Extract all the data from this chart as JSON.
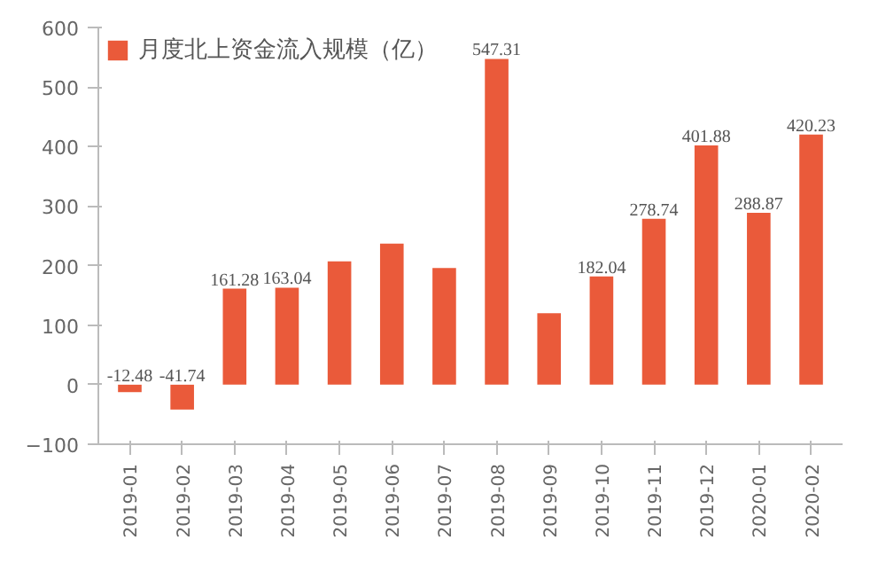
{
  "chart_data": {
    "type": "bar",
    "categories": [
      "2019-01",
      "2019-02",
      "2019-03",
      "2019-04",
      "2019-05",
      "2019-06",
      "2019-07",
      "2019-08",
      "2019-09",
      "2019-10",
      "2019-11",
      "2019-12",
      "2020-01",
      "2020-02"
    ],
    "series": [
      {
        "name": "月度北上资金流入规模（亿）",
        "color": "#ea5a3a",
        "values": [
          -12.48,
          -41.74,
          161.28,
          163.04,
          207,
          237,
          196,
          547.31,
          120,
          182.04,
          278.74,
          401.88,
          288.87,
          420.23
        ],
        "value_labels": [
          "-12.48",
          "-41.74",
          "161.28",
          "163.04",
          null,
          null,
          null,
          "547.31",
          null,
          "182.04",
          "278.74",
          "401.88",
          "288.87",
          "420.23"
        ]
      }
    ],
    "ylim": [
      -100,
      600
    ],
    "yticks": [
      -100,
      0,
      100,
      200,
      300,
      400,
      500,
      600
    ],
    "grid": false,
    "legend": "top"
  }
}
